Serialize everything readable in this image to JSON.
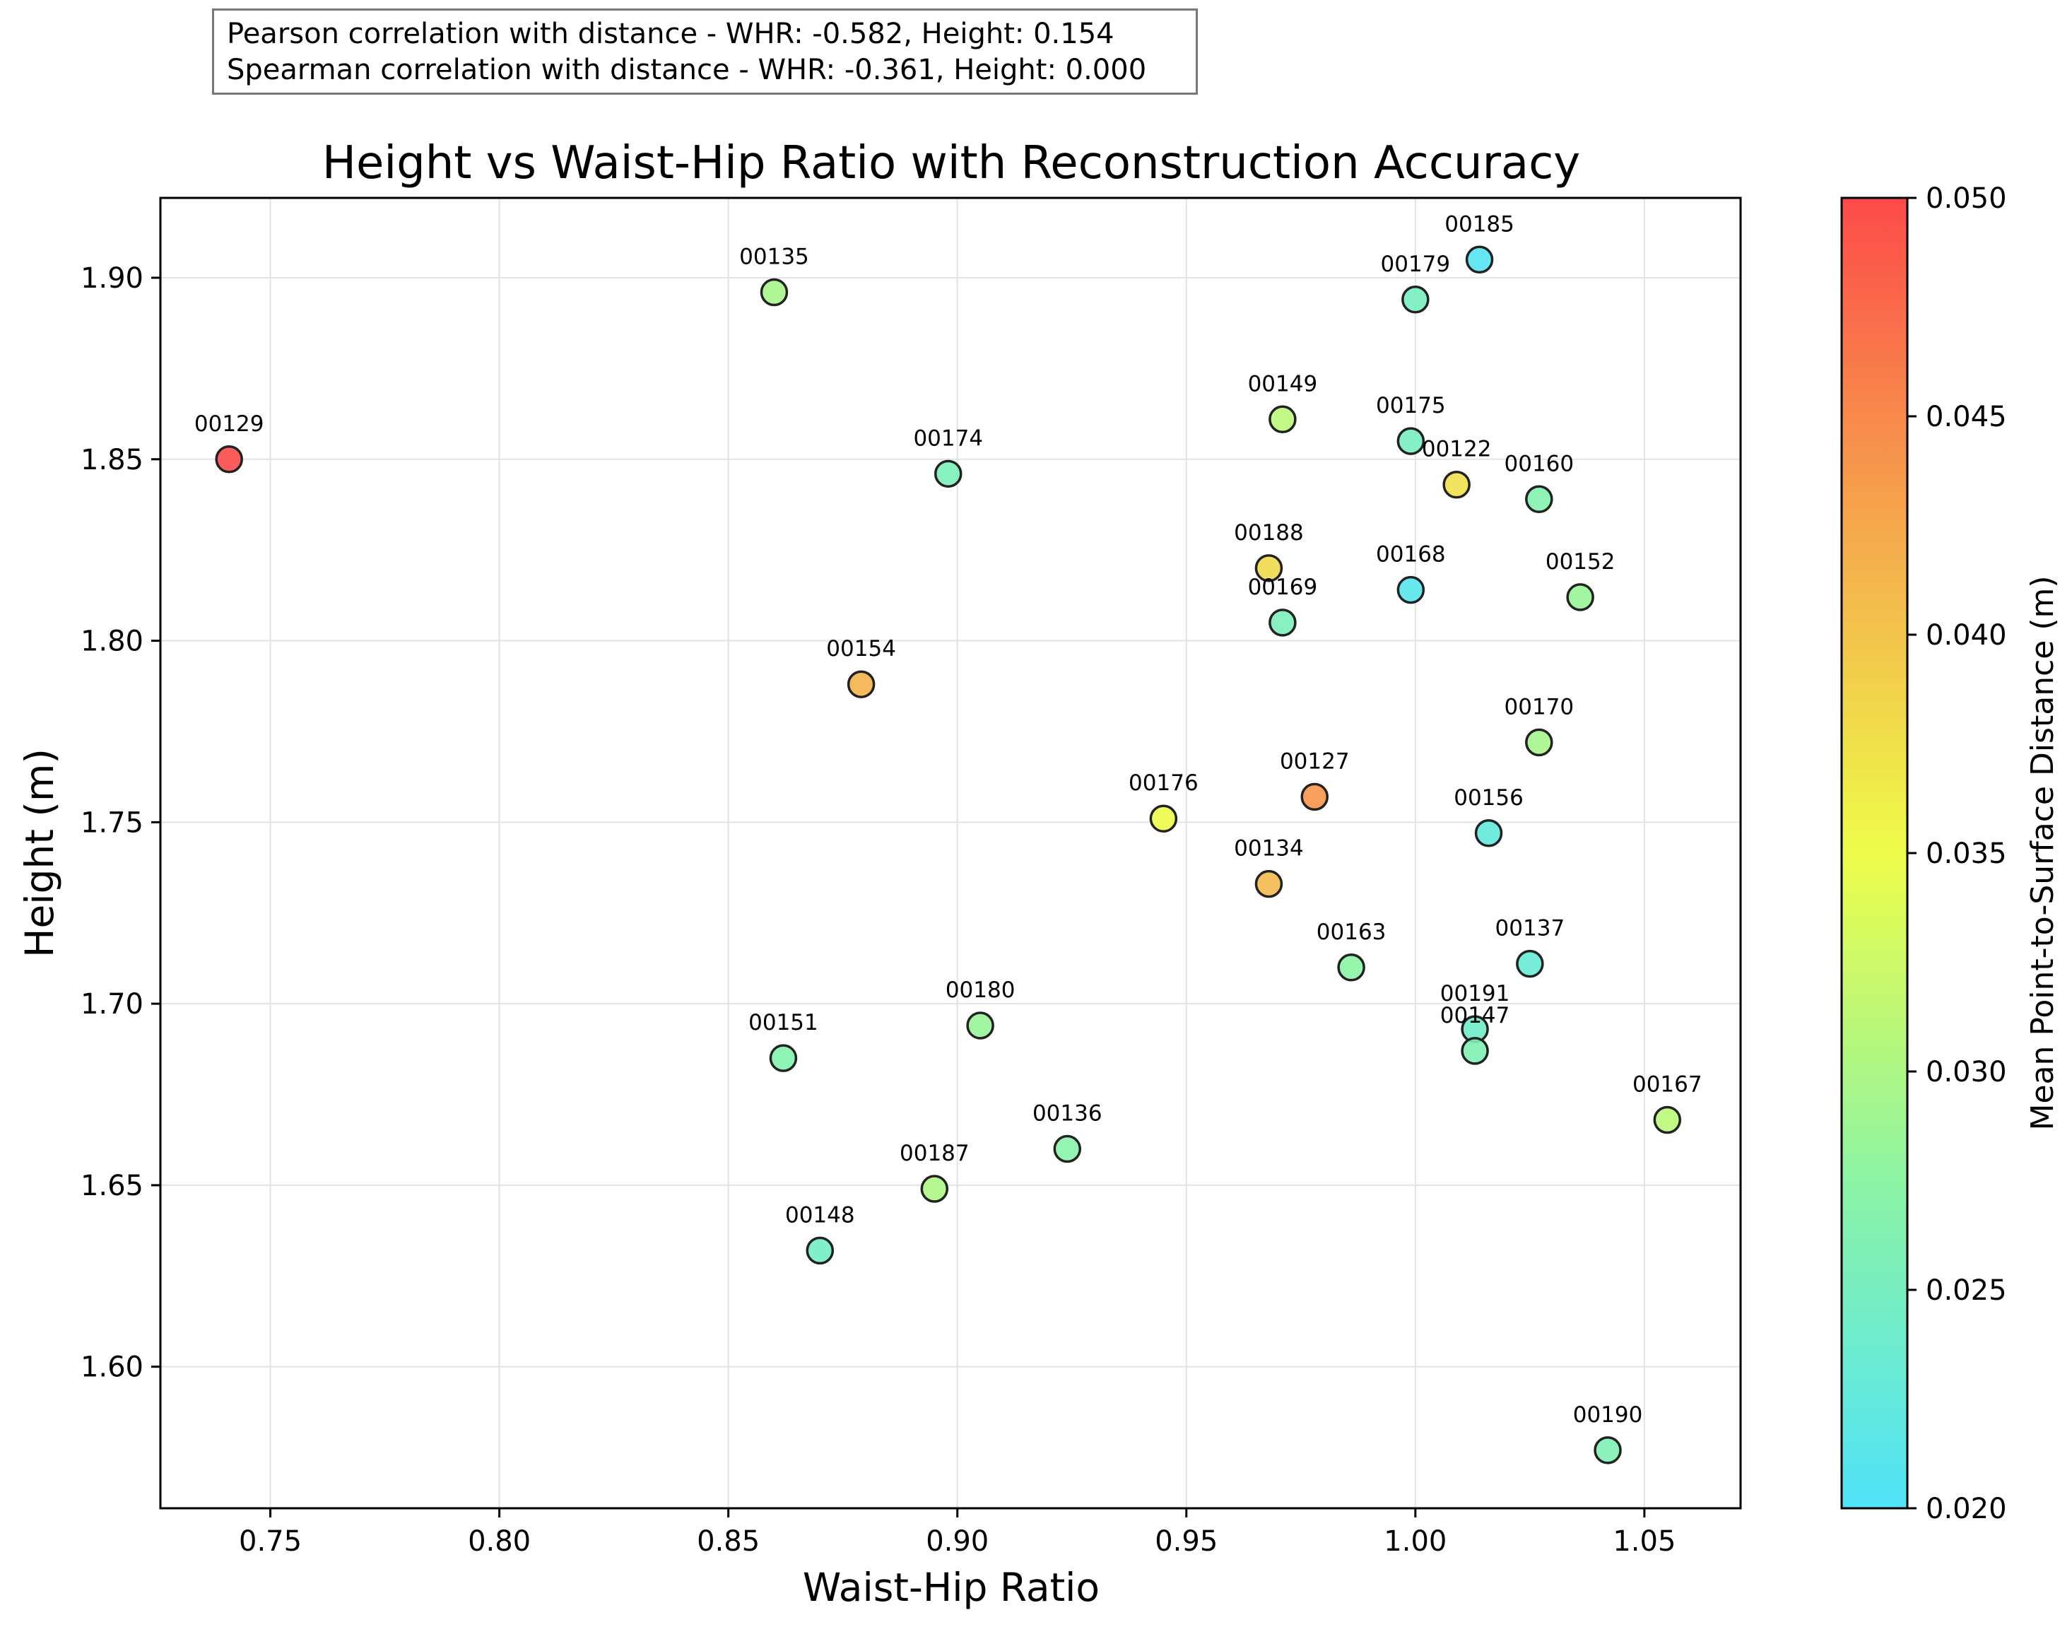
{
  "stats": {
    "pearson": "Pearson correlation with distance - WHR: -0.582, Height: 0.154",
    "spearman": "Spearman correlation with distance - WHR: -0.361, Height: 0.000"
  },
  "chart_data": {
    "type": "scatter",
    "title": "Height vs Waist-Hip Ratio with Reconstruction Accuracy",
    "xlabel": "Waist-Hip Ratio",
    "ylabel": "Height (m)",
    "colorbar_label": "Mean Point-to-Surface Distance (m)",
    "xlim": [
      0.726,
      1.071
    ],
    "ylim": [
      1.561,
      1.922
    ],
    "clim": [
      0.02,
      0.05
    ],
    "xticks": [
      0.75,
      0.8,
      0.85,
      0.9,
      0.95,
      1.0,
      1.05
    ],
    "xtick_labels": [
      "0.75",
      "0.80",
      "0.85",
      "0.90",
      "0.95",
      "1.00",
      "1.05"
    ],
    "yticks": [
      1.6,
      1.65,
      1.7,
      1.75,
      1.8,
      1.85,
      1.9
    ],
    "ytick_labels": [
      "1.60",
      "1.65",
      "1.70",
      "1.75",
      "1.80",
      "1.85",
      "1.90"
    ],
    "cticks": [
      0.02,
      0.025,
      0.03,
      0.035,
      0.04,
      0.045,
      0.05
    ],
    "ctick_labels": [
      "0.020",
      "0.025",
      "0.030",
      "0.035",
      "0.040",
      "0.045",
      "0.050"
    ],
    "colormap": [
      "#4fe3f7",
      "#8cf4a3",
      "#eefc4a",
      "#f5a84c",
      "#fd4a4a"
    ],
    "grid": true,
    "points": [
      {
        "label": "00129",
        "x": 0.741,
        "y": 1.85,
        "c": 0.05
      },
      {
        "label": "00135",
        "x": 0.86,
        "y": 1.896,
        "c": 0.0295
      },
      {
        "label": "00174",
        "x": 0.898,
        "y": 1.846,
        "c": 0.0255
      },
      {
        "label": "00154",
        "x": 0.879,
        "y": 1.788,
        "c": 0.0415
      },
      {
        "label": "00151",
        "x": 0.862,
        "y": 1.685,
        "c": 0.0265
      },
      {
        "label": "00148",
        "x": 0.87,
        "y": 1.632,
        "c": 0.0245
      },
      {
        "label": "00187",
        "x": 0.895,
        "y": 1.649,
        "c": 0.03
      },
      {
        "label": "00180",
        "x": 0.905,
        "y": 1.694,
        "c": 0.0285
      },
      {
        "label": "00136",
        "x": 0.924,
        "y": 1.66,
        "c": 0.027
      },
      {
        "label": "00176",
        "x": 0.945,
        "y": 1.751,
        "c": 0.035
      },
      {
        "label": "00149",
        "x": 0.971,
        "y": 1.861,
        "c": 0.031
      },
      {
        "label": "00188",
        "x": 0.968,
        "y": 1.82,
        "c": 0.038
      },
      {
        "label": "00169",
        "x": 0.971,
        "y": 1.805,
        "c": 0.0255
      },
      {
        "label": "00127",
        "x": 0.978,
        "y": 1.757,
        "c": 0.044
      },
      {
        "label": "00134",
        "x": 0.968,
        "y": 1.733,
        "c": 0.041
      },
      {
        "label": "00163",
        "x": 0.986,
        "y": 1.71,
        "c": 0.0275
      },
      {
        "label": "00185",
        "x": 1.014,
        "y": 1.905,
        "c": 0.0205
      },
      {
        "label": "00179",
        "x": 1.0,
        "y": 1.894,
        "c": 0.025
      },
      {
        "label": "00175",
        "x": 0.999,
        "y": 1.855,
        "c": 0.025
      },
      {
        "label": "00122",
        "x": 1.009,
        "y": 1.843,
        "c": 0.0375
      },
      {
        "label": "00168",
        "x": 0.999,
        "y": 1.814,
        "c": 0.021
      },
      {
        "label": "00160",
        "x": 1.027,
        "y": 1.839,
        "c": 0.0265
      },
      {
        "label": "00152",
        "x": 1.036,
        "y": 1.812,
        "c": 0.0285
      },
      {
        "label": "00170",
        "x": 1.027,
        "y": 1.772,
        "c": 0.0295
      },
      {
        "label": "00156",
        "x": 1.016,
        "y": 1.747,
        "c": 0.0225
      },
      {
        "label": "00137",
        "x": 1.025,
        "y": 1.711,
        "c": 0.023
      },
      {
        "label": "00191",
        "x": 1.013,
        "y": 1.693,
        "c": 0.024
      },
      {
        "label": "00147",
        "x": 1.013,
        "y": 1.687,
        "c": 0.026
      },
      {
        "label": "00167",
        "x": 1.055,
        "y": 1.668,
        "c": 0.031
      },
      {
        "label": "00190",
        "x": 1.042,
        "y": 1.577,
        "c": 0.026
      }
    ]
  }
}
